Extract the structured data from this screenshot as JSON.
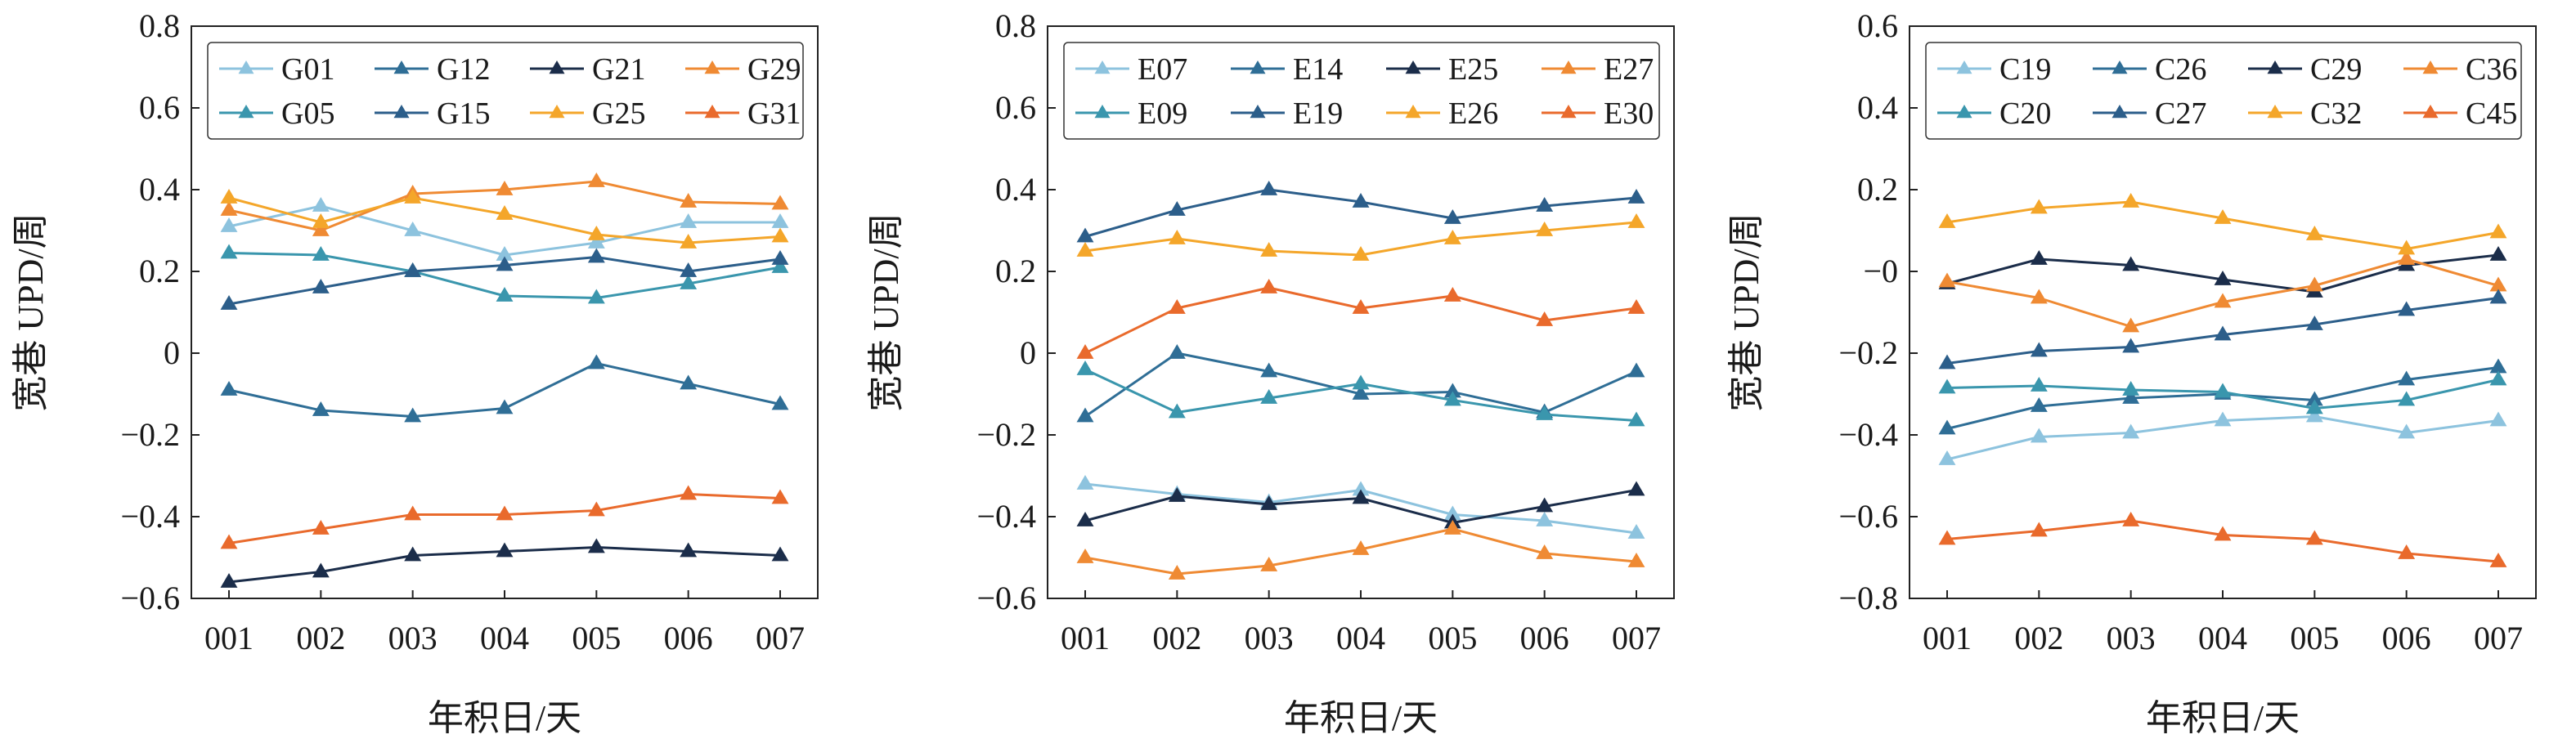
{
  "chart_data": [
    {
      "type": "line",
      "xlabel": "年积日/天",
      "ylabel": "宽巷 UPD/周",
      "categories": [
        "001",
        "002",
        "003",
        "004",
        "005",
        "006",
        "007"
      ],
      "ylim": [
        -0.6,
        0.8
      ],
      "yticks": [
        -0.6,
        -0.4,
        -0.2,
        0,
        0.2,
        0.4,
        0.6,
        0.8
      ],
      "ytick_labels": [
        "−0.6",
        "−0.4",
        "−0.2",
        "0",
        "0.2",
        "0.4",
        "0.6",
        "0.8"
      ],
      "grid": false,
      "legend": "top",
      "series": [
        {
          "name": "G01",
          "color": "#8dc3de",
          "values": [
            0.31,
            0.36,
            0.3,
            0.24,
            0.27,
            0.32,
            0.32
          ]
        },
        {
          "name": "G12",
          "color": "#2f6e96",
          "values": [
            -0.09,
            -0.14,
            -0.155,
            -0.135,
            -0.025,
            -0.075,
            -0.125
          ]
        },
        {
          "name": "G21",
          "color": "#1b2d4a",
          "values": [
            -0.56,
            -0.535,
            -0.495,
            -0.485,
            -0.475,
            -0.485,
            -0.495
          ]
        },
        {
          "name": "G29",
          "color": "#ef8a33",
          "values": [
            0.35,
            0.3,
            0.39,
            0.4,
            0.42,
            0.37,
            0.365
          ]
        },
        {
          "name": "G05",
          "color": "#3a96ad",
          "values": [
            0.245,
            0.24,
            0.2,
            0.14,
            0.135,
            0.17,
            0.21
          ]
        },
        {
          "name": "G15",
          "color": "#2c5e8a",
          "values": [
            0.12,
            0.16,
            0.2,
            0.215,
            0.235,
            0.2,
            0.23
          ]
        },
        {
          "name": "G25",
          "color": "#f4a62a",
          "values": [
            0.38,
            0.32,
            0.38,
            0.34,
            0.29,
            0.27,
            0.285
          ]
        },
        {
          "name": "G31",
          "color": "#e96a2c",
          "values": [
            -0.465,
            -0.43,
            -0.395,
            -0.395,
            -0.385,
            -0.345,
            -0.355
          ]
        }
      ]
    },
    {
      "type": "line",
      "xlabel": "年积日/天",
      "ylabel": "宽巷 UPD/周",
      "categories": [
        "001",
        "002",
        "003",
        "004",
        "005",
        "006",
        "007"
      ],
      "ylim": [
        -0.6,
        0.8
      ],
      "yticks": [
        -0.6,
        -0.4,
        -0.2,
        0,
        0.2,
        0.4,
        0.6,
        0.8
      ],
      "ytick_labels": [
        "−0.6",
        "−0.4",
        "−0.2",
        "0",
        "0.2",
        "0.4",
        "0.6",
        "0.8"
      ],
      "grid": false,
      "legend": "top",
      "series": [
        {
          "name": "E07",
          "color": "#8dc3de",
          "values": [
            -0.32,
            -0.345,
            -0.365,
            -0.335,
            -0.395,
            -0.41,
            -0.44
          ]
        },
        {
          "name": "E14",
          "color": "#2f6e96",
          "values": [
            -0.155,
            0.0,
            -0.045,
            -0.1,
            -0.095,
            -0.145,
            -0.045
          ]
        },
        {
          "name": "E25",
          "color": "#1b2d4a",
          "values": [
            -0.41,
            -0.35,
            -0.37,
            -0.355,
            -0.415,
            -0.375,
            -0.335
          ]
        },
        {
          "name": "E27",
          "color": "#ef8a33",
          "values": [
            -0.5,
            -0.54,
            -0.52,
            -0.48,
            -0.43,
            -0.49,
            -0.51
          ]
        },
        {
          "name": "E09",
          "color": "#3a96ad",
          "values": [
            -0.04,
            -0.145,
            -0.11,
            -0.075,
            -0.115,
            -0.15,
            -0.165
          ]
        },
        {
          "name": "E19",
          "color": "#2c5e8a",
          "values": [
            0.285,
            0.35,
            0.4,
            0.37,
            0.33,
            0.36,
            0.38
          ]
        },
        {
          "name": "E26",
          "color": "#f4a62a",
          "values": [
            0.25,
            0.28,
            0.25,
            0.24,
            0.28,
            0.3,
            0.32
          ]
        },
        {
          "name": "E30",
          "color": "#e96a2c",
          "values": [
            0.0,
            0.11,
            0.16,
            0.11,
            0.14,
            0.08,
            0.11
          ]
        }
      ]
    },
    {
      "type": "line",
      "xlabel": "年积日/天",
      "ylabel": "宽巷 UPD/周",
      "categories": [
        "001",
        "002",
        "003",
        "004",
        "005",
        "006",
        "007"
      ],
      "ylim": [
        -0.8,
        0.6
      ],
      "yticks": [
        -0.8,
        -0.6,
        -0.4,
        -0.2,
        0,
        0.2,
        0.4,
        0.6
      ],
      "ytick_labels": [
        "−0.8",
        "−0.6",
        "−0.4",
        "−0.2",
        "−0",
        "0.2",
        "0.4",
        "0.6"
      ],
      "grid": false,
      "legend": "top",
      "series": [
        {
          "name": "C19",
          "color": "#8dc3de",
          "values": [
            -0.46,
            -0.405,
            -0.395,
            -0.365,
            -0.355,
            -0.395,
            -0.365
          ]
        },
        {
          "name": "C26",
          "color": "#2f6e96",
          "values": [
            -0.385,
            -0.33,
            -0.31,
            -0.3,
            -0.315,
            -0.265,
            -0.235
          ]
        },
        {
          "name": "C29",
          "color": "#1b2d4a",
          "values": [
            -0.03,
            0.03,
            0.015,
            -0.02,
            -0.05,
            0.015,
            0.04
          ]
        },
        {
          "name": "C36",
          "color": "#ef8a33",
          "values": [
            -0.025,
            -0.065,
            -0.135,
            -0.075,
            -0.035,
            0.03,
            -0.035
          ]
        },
        {
          "name": "C20",
          "color": "#3a96ad",
          "values": [
            -0.285,
            -0.28,
            -0.29,
            -0.295,
            -0.335,
            -0.315,
            -0.265
          ]
        },
        {
          "name": "C27",
          "color": "#2c5e8a",
          "values": [
            -0.225,
            -0.195,
            -0.185,
            -0.155,
            -0.13,
            -0.095,
            -0.065
          ]
        },
        {
          "name": "C32",
          "color": "#f4a62a",
          "values": [
            0.12,
            0.155,
            0.17,
            0.13,
            0.09,
            0.055,
            0.095
          ]
        },
        {
          "name": "C45",
          "color": "#e96a2c",
          "values": [
            -0.655,
            -0.635,
            -0.61,
            -0.645,
            -0.655,
            -0.69,
            -0.71
          ]
        }
      ]
    }
  ]
}
